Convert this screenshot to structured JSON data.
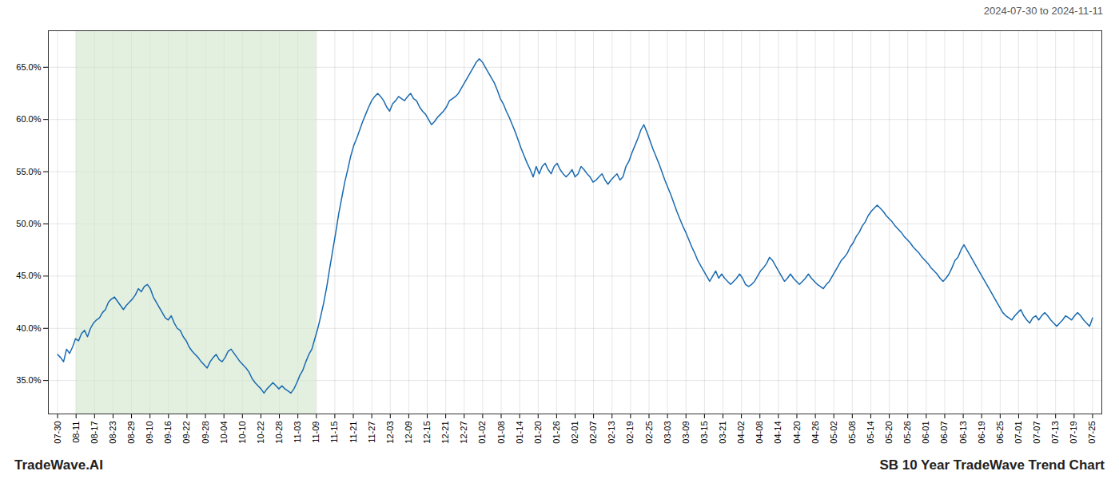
{
  "chart_data": {
    "type": "line",
    "title": "SB 10 Year TradeWave Trend Chart",
    "annotations": [
      "2024-07-30 to 2024-11-11",
      "TradeWave.AI"
    ],
    "color": "#1a6ab0",
    "grid": true,
    "xlim": [
      -0.5,
      56.5
    ],
    "xticks": [
      {
        "value": 0,
        "label": "07-30"
      },
      {
        "value": 1,
        "label": "08-11"
      },
      {
        "value": 2,
        "label": "08-17"
      },
      {
        "value": 3,
        "label": "08-23"
      },
      {
        "value": 4,
        "label": "08-29"
      },
      {
        "value": 5,
        "label": "09-10"
      },
      {
        "value": 6,
        "label": "09-16"
      },
      {
        "value": 7,
        "label": "09-22"
      },
      {
        "value": 8,
        "label": "09-28"
      },
      {
        "value": 9,
        "label": "10-04"
      },
      {
        "value": 10,
        "label": "10-10"
      },
      {
        "value": 11,
        "label": "10-22"
      },
      {
        "value": 12,
        "label": "10-28"
      },
      {
        "value": 13,
        "label": "11-03"
      },
      {
        "value": 14,
        "label": "11-09"
      },
      {
        "value": 15,
        "label": "11-15"
      },
      {
        "value": 16,
        "label": "11-21"
      },
      {
        "value": 17,
        "label": "11-27"
      },
      {
        "value": 18,
        "label": "12-03"
      },
      {
        "value": 19,
        "label": "12-09"
      },
      {
        "value": 20,
        "label": "12-15"
      },
      {
        "value": 21,
        "label": "12-21"
      },
      {
        "value": 22,
        "label": "12-27"
      },
      {
        "value": 23,
        "label": "01-02"
      },
      {
        "value": 24,
        "label": "01-08"
      },
      {
        "value": 25,
        "label": "01-14"
      },
      {
        "value": 26,
        "label": "01-20"
      },
      {
        "value": 27,
        "label": "01-26"
      },
      {
        "value": 28,
        "label": "02-01"
      },
      {
        "value": 29,
        "label": "02-07"
      },
      {
        "value": 30,
        "label": "02-13"
      },
      {
        "value": 31,
        "label": "02-19"
      },
      {
        "value": 32,
        "label": "02-25"
      },
      {
        "value": 33,
        "label": "03-03"
      },
      {
        "value": 34,
        "label": "03-09"
      },
      {
        "value": 35,
        "label": "03-15"
      },
      {
        "value": 36,
        "label": "03-21"
      },
      {
        "value": 37,
        "label": "04-02"
      },
      {
        "value": 38,
        "label": "04-08"
      },
      {
        "value": 39,
        "label": "04-14"
      },
      {
        "value": 40,
        "label": "04-20"
      },
      {
        "value": 41,
        "label": "04-26"
      },
      {
        "value": 42,
        "label": "05-02"
      },
      {
        "value": 43,
        "label": "05-08"
      },
      {
        "value": 44,
        "label": "05-14"
      },
      {
        "value": 45,
        "label": "05-20"
      },
      {
        "value": 46,
        "label": "05-26"
      },
      {
        "value": 47,
        "label": "06-01"
      },
      {
        "value": 48,
        "label": "06-07"
      },
      {
        "value": 49,
        "label": "06-13"
      },
      {
        "value": 50,
        "label": "06-19"
      },
      {
        "value": 51,
        "label": "06-25"
      },
      {
        "value": 52,
        "label": "07-01"
      },
      {
        "value": 53,
        "label": "07-07"
      },
      {
        "value": 54,
        "label": "07-13"
      },
      {
        "value": 55,
        "label": "07-19"
      },
      {
        "value": 56,
        "label": "07-25"
      }
    ],
    "ylim": [
      0.318,
      0.685
    ],
    "yticks": [
      {
        "value": 0.35,
        "label": "35.0%"
      },
      {
        "value": 0.4,
        "label": "40.0%"
      },
      {
        "value": 0.45,
        "label": "45.0%"
      },
      {
        "value": 0.5,
        "label": "50.0%"
      },
      {
        "value": 0.55,
        "label": "55.0%"
      },
      {
        "value": 0.6,
        "label": "60.0%"
      },
      {
        "value": 0.65,
        "label": "65.0%"
      }
    ],
    "spans": [
      {
        "x": [
          1,
          14
        ],
        "color": "#d4e8d0"
      }
    ],
    "x": [
      0,
      0.1618,
      0.3237,
      0.4855,
      0.6474,
      0.8092,
      0.9711,
      1.1329,
      1.2948,
      1.4566,
      1.6185,
      1.7803,
      1.9422,
      2.104,
      2.2659,
      2.4277,
      2.5896,
      2.7514,
      2.9133,
      3.0751,
      3.237,
      3.3988,
      3.5607,
      3.7225,
      3.8844,
      4.0462,
      4.2081,
      4.3699,
      4.5318,
      4.6936,
      4.8555,
      5.0173,
      5.1792,
      5.341,
      5.5029,
      5.6647,
      5.8266,
      5.9884,
      6.1503,
      6.3121,
      6.474,
      6.6358,
      6.7977,
      6.9595,
      7.1214,
      7.2832,
      7.4451,
      7.6069,
      7.7688,
      7.9306,
      8.0925,
      8.2543,
      8.4162,
      8.578,
      8.7399,
      8.9017,
      9.0636,
      9.2254,
      9.3873,
      9.5491,
      9.711,
      9.8728,
      10.0347,
      10.1965,
      10.3584,
      10.5202,
      10.6821,
      10.8439,
      11.0058,
      11.1676,
      11.3295,
      11.4913,
      11.6532,
      11.815,
      11.9769,
      12.1387,
      12.3006,
      12.4624,
      12.6243,
      12.7861,
      12.948,
      13.1098,
      13.2717,
      13.4335,
      13.5954,
      13.7572,
      13.9191,
      14.0809,
      14.2428,
      14.4046,
      14.5665,
      14.7283,
      14.8902,
      15.052,
      15.2139,
      15.3757,
      15.5376,
      15.6994,
      15.8613,
      16.0231,
      16.185,
      16.3468,
      16.5087,
      16.6705,
      16.8324,
      16.9942,
      17.1561,
      17.3179,
      17.4798,
      17.6416,
      17.8035,
      17.9653,
      18.1272,
      18.289,
      18.4509,
      18.6127,
      18.7746,
      18.9364,
      19.0983,
      19.2601,
      19.422,
      19.5838,
      19.7457,
      19.9075,
      20.0694,
      20.2312,
      20.3931,
      20.5549,
      20.7168,
      20.8786,
      21.0405,
      21.2023,
      21.3642,
      21.526,
      21.6879,
      21.8497,
      22.0116,
      22.1734,
      22.3353,
      22.4971,
      22.659,
      22.8208,
      22.9827,
      23.1445,
      23.3064,
      23.4682,
      23.6301,
      23.7919,
      23.9538,
      24.1156,
      24.2775,
      24.4393,
      24.6012,
      24.763,
      24.9249,
      25.0867,
      25.2486,
      25.4104,
      25.5723,
      25.7341,
      25.896,
      26.0578,
      26.2197,
      26.3815,
      26.5434,
      26.7052,
      26.8671,
      27.0289,
      27.1908,
      27.3526,
      27.5145,
      27.6763,
      27.8382,
      28,
      28.1618,
      28.3237,
      28.4855,
      28.6474,
      28.8092,
      28.9711,
      29.1329,
      29.2948,
      29.4566,
      29.6185,
      29.7803,
      29.9422,
      30.104,
      30.2659,
      30.4277,
      30.5896,
      30.7514,
      30.9133,
      31.0751,
      31.237,
      31.3988,
      31.5607,
      31.7225,
      31.8844,
      32.0462,
      32.2081,
      32.3699,
      32.5318,
      32.6936,
      32.8555,
      33.0173,
      33.1792,
      33.341,
      33.5029,
      33.6647,
      33.8266,
      33.9884,
      34.1503,
      34.3121,
      34.474,
      34.6358,
      34.7977,
      34.9595,
      35.1214,
      35.2832,
      35.4451,
      35.6069,
      35.7688,
      35.9306,
      36.0925,
      36.2543,
      36.4162,
      36.578,
      36.7399,
      36.9017,
      37.0636,
      37.2254,
      37.3873,
      37.5491,
      37.711,
      37.8728,
      38.0347,
      38.1965,
      38.3584,
      38.5202,
      38.6821,
      38.8439,
      39.0058,
      39.1676,
      39.3295,
      39.4913,
      39.6532,
      39.815,
      39.9769,
      40.1387,
      40.3006,
      40.4624,
      40.6243,
      40.7861,
      40.948,
      41.1098,
      41.2717,
      41.4335,
      41.5954,
      41.7572,
      41.9191,
      42.0809,
      42.2428,
      42.4046,
      42.5665,
      42.7283,
      42.8902,
      43.052,
      43.2139,
      43.3757,
      43.5376,
      43.6994,
      43.8613,
      44.0231,
      44.185,
      44.3468,
      44.5087,
      44.6705,
      44.8324,
      44.9942,
      45.1561,
      45.3179,
      45.4798,
      45.6416,
      45.8035,
      45.9653,
      46.1272,
      46.289,
      46.4509,
      46.6127,
      46.7746,
      46.9364,
      47.0983,
      47.2601,
      47.422,
      47.5838,
      47.7457,
      47.9075,
      48.0694,
      48.2312,
      48.3931,
      48.5549,
      48.7168,
      48.8786,
      49.0405,
      49.2023,
      49.3642,
      49.526,
      49.6879,
      49.8497,
      50.0116,
      50.1734,
      50.3353,
      50.4971,
      50.659,
      50.8208,
      50.9827,
      51.1445,
      51.3064,
      51.4682,
      51.6301,
      51.7919,
      51.9538,
      52.1156,
      52.2775,
      52.4393,
      52.6012,
      52.763,
      52.9249,
      53.0867,
      53.2486,
      53.4104,
      53.5723,
      53.7341,
      53.896,
      54.0578,
      54.2197,
      54.3815,
      54.5434,
      54.7052,
      54.8671,
      55.0289,
      55.1908,
      55.3526,
      55.5145,
      55.6763,
      55.8382,
      56
    ],
    "values": [
      0.375,
      0.372,
      0.368,
      0.38,
      0.376,
      0.382,
      0.39,
      0.388,
      0.395,
      0.398,
      0.392,
      0.4,
      0.405,
      0.408,
      0.41,
      0.415,
      0.418,
      0.425,
      0.428,
      0.43,
      0.426,
      0.422,
      0.418,
      0.422,
      0.425,
      0.428,
      0.432,
      0.438,
      0.435,
      0.44,
      0.442,
      0.438,
      0.43,
      0.425,
      0.42,
      0.415,
      0.41,
      0.408,
      0.412,
      0.405,
      0.4,
      0.398,
      0.392,
      0.388,
      0.382,
      0.378,
      0.375,
      0.372,
      0.368,
      0.365,
      0.362,
      0.368,
      0.372,
      0.375,
      0.37,
      0.368,
      0.372,
      0.378,
      0.38,
      0.376,
      0.372,
      0.368,
      0.365,
      0.362,
      0.358,
      0.352,
      0.348,
      0.345,
      0.342,
      0.338,
      0.342,
      0.345,
      0.348,
      0.345,
      0.342,
      0.345,
      0.342,
      0.34,
      0.338,
      0.342,
      0.348,
      0.355,
      0.36,
      0.368,
      0.375,
      0.38,
      0.39,
      0.4,
      0.412,
      0.425,
      0.44,
      0.458,
      0.475,
      0.492,
      0.51,
      0.525,
      0.54,
      0.552,
      0.565,
      0.575,
      0.582,
      0.59,
      0.598,
      0.605,
      0.612,
      0.618,
      0.622,
      0.625,
      0.622,
      0.618,
      0.612,
      0.608,
      0.615,
      0.618,
      0.622,
      0.62,
      0.618,
      0.622,
      0.625,
      0.62,
      0.618,
      0.612,
      0.608,
      0.605,
      0.6,
      0.595,
      0.598,
      0.602,
      0.605,
      0.608,
      0.612,
      0.618,
      0.62,
      0.622,
      0.625,
      0.63,
      0.635,
      0.64,
      0.645,
      0.65,
      0.655,
      0.658,
      0.655,
      0.65,
      0.645,
      0.64,
      0.635,
      0.628,
      0.62,
      0.615,
      0.608,
      0.602,
      0.595,
      0.588,
      0.58,
      0.572,
      0.565,
      0.558,
      0.552,
      0.545,
      0.555,
      0.548,
      0.555,
      0.558,
      0.552,
      0.548,
      0.555,
      0.558,
      0.552,
      0.548,
      0.545,
      0.548,
      0.552,
      0.545,
      0.548,
      0.555,
      0.552,
      0.548,
      0.545,
      0.54,
      0.542,
      0.545,
      0.548,
      0.542,
      0.538,
      0.542,
      0.545,
      0.548,
      0.542,
      0.545,
      0.555,
      0.56,
      0.568,
      0.575,
      0.582,
      0.59,
      0.595,
      0.588,
      0.58,
      0.572,
      0.565,
      0.558,
      0.55,
      0.542,
      0.535,
      0.528,
      0.52,
      0.512,
      0.505,
      0.498,
      0.492,
      0.485,
      0.478,
      0.472,
      0.465,
      0.46,
      0.455,
      0.45,
      0.445,
      0.45,
      0.455,
      0.448,
      0.452,
      0.448,
      0.445,
      0.442,
      0.445,
      0.448,
      0.452,
      0.448,
      0.442,
      0.44,
      0.442,
      0.445,
      0.45,
      0.455,
      0.458,
      0.462,
      0.468,
      0.465,
      0.46,
      0.455,
      0.45,
      0.445,
      0.448,
      0.452,
      0.448,
      0.445,
      0.442,
      0.445,
      0.448,
      0.452,
      0.448,
      0.445,
      0.442,
      0.44,
      0.438,
      0.442,
      0.445,
      0.45,
      0.455,
      0.46,
      0.465,
      0.468,
      0.472,
      0.478,
      0.482,
      0.488,
      0.492,
      0.498,
      0.502,
      0.508,
      0.512,
      0.515,
      0.518,
      0.515,
      0.512,
      0.508,
      0.505,
      0.502,
      0.498,
      0.495,
      0.492,
      0.488,
      0.485,
      0.482,
      0.478,
      0.475,
      0.472,
      0.468,
      0.465,
      0.462,
      0.458,
      0.455,
      0.452,
      0.448,
      0.445,
      0.448,
      0.452,
      0.458,
      0.465,
      0.468,
      0.475,
      0.48,
      0.475,
      0.47,
      0.465,
      0.46,
      0.455,
      0.45,
      0.445,
      0.44,
      0.435,
      0.43,
      0.425,
      0.42,
      0.415,
      0.412,
      0.41,
      0.408,
      0.412,
      0.415,
      0.418,
      0.412,
      0.408,
      0.405,
      0.41,
      0.412,
      0.408,
      0.412,
      0.415,
      0.412,
      0.408,
      0.405,
      0.402,
      0.405,
      0.408,
      0.412,
      0.41,
      0.408,
      0.412,
      0.415,
      0.412,
      0.408,
      0.405,
      0.402,
      0.41
    ]
  }
}
